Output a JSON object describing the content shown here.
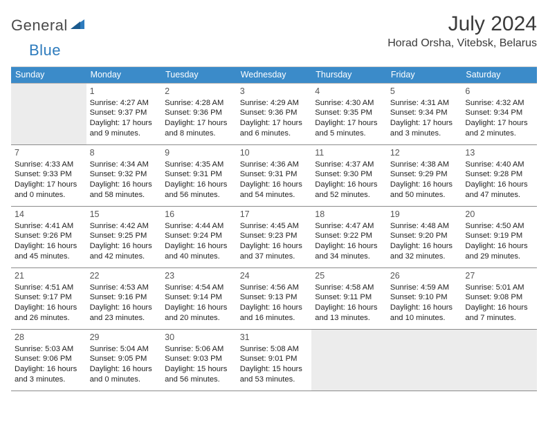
{
  "brand": {
    "general": "General",
    "blue": "Blue"
  },
  "title": {
    "month": "July 2024",
    "location": "Horad Orsha, Vitebsk, Belarus"
  },
  "colors": {
    "header_bg": "#3b8bc9",
    "header_text": "#ffffff",
    "border": "#8a8a8a",
    "empty_bg": "#ececec",
    "text": "#222222",
    "brand_gray": "#4a4a4a",
    "brand_blue": "#2d7bbd"
  },
  "typography": {
    "title_fontsize": 30,
    "location_fontsize": 16,
    "dayhead_fontsize": 12.5,
    "daynum_fontsize": 12.5,
    "cell_fontsize": 11.2
  },
  "dayheads": [
    "Sunday",
    "Monday",
    "Tuesday",
    "Wednesday",
    "Thursday",
    "Friday",
    "Saturday"
  ],
  "days": [
    {
      "n": "",
      "sr": "",
      "ss": "",
      "dl1": "",
      "dl2": ""
    },
    {
      "n": "1",
      "sr": "Sunrise: 4:27 AM",
      "ss": "Sunset: 9:37 PM",
      "dl1": "Daylight: 17 hours",
      "dl2": "and 9 minutes."
    },
    {
      "n": "2",
      "sr": "Sunrise: 4:28 AM",
      "ss": "Sunset: 9:36 PM",
      "dl1": "Daylight: 17 hours",
      "dl2": "and 8 minutes."
    },
    {
      "n": "3",
      "sr": "Sunrise: 4:29 AM",
      "ss": "Sunset: 9:36 PM",
      "dl1": "Daylight: 17 hours",
      "dl2": "and 6 minutes."
    },
    {
      "n": "4",
      "sr": "Sunrise: 4:30 AM",
      "ss": "Sunset: 9:35 PM",
      "dl1": "Daylight: 17 hours",
      "dl2": "and 5 minutes."
    },
    {
      "n": "5",
      "sr": "Sunrise: 4:31 AM",
      "ss": "Sunset: 9:34 PM",
      "dl1": "Daylight: 17 hours",
      "dl2": "and 3 minutes."
    },
    {
      "n": "6",
      "sr": "Sunrise: 4:32 AM",
      "ss": "Sunset: 9:34 PM",
      "dl1": "Daylight: 17 hours",
      "dl2": "and 2 minutes."
    },
    {
      "n": "7",
      "sr": "Sunrise: 4:33 AM",
      "ss": "Sunset: 9:33 PM",
      "dl1": "Daylight: 17 hours",
      "dl2": "and 0 minutes."
    },
    {
      "n": "8",
      "sr": "Sunrise: 4:34 AM",
      "ss": "Sunset: 9:32 PM",
      "dl1": "Daylight: 16 hours",
      "dl2": "and 58 minutes."
    },
    {
      "n": "9",
      "sr": "Sunrise: 4:35 AM",
      "ss": "Sunset: 9:31 PM",
      "dl1": "Daylight: 16 hours",
      "dl2": "and 56 minutes."
    },
    {
      "n": "10",
      "sr": "Sunrise: 4:36 AM",
      "ss": "Sunset: 9:31 PM",
      "dl1": "Daylight: 16 hours",
      "dl2": "and 54 minutes."
    },
    {
      "n": "11",
      "sr": "Sunrise: 4:37 AM",
      "ss": "Sunset: 9:30 PM",
      "dl1": "Daylight: 16 hours",
      "dl2": "and 52 minutes."
    },
    {
      "n": "12",
      "sr": "Sunrise: 4:38 AM",
      "ss": "Sunset: 9:29 PM",
      "dl1": "Daylight: 16 hours",
      "dl2": "and 50 minutes."
    },
    {
      "n": "13",
      "sr": "Sunrise: 4:40 AM",
      "ss": "Sunset: 9:28 PM",
      "dl1": "Daylight: 16 hours",
      "dl2": "and 47 minutes."
    },
    {
      "n": "14",
      "sr": "Sunrise: 4:41 AM",
      "ss": "Sunset: 9:26 PM",
      "dl1": "Daylight: 16 hours",
      "dl2": "and 45 minutes."
    },
    {
      "n": "15",
      "sr": "Sunrise: 4:42 AM",
      "ss": "Sunset: 9:25 PM",
      "dl1": "Daylight: 16 hours",
      "dl2": "and 42 minutes."
    },
    {
      "n": "16",
      "sr": "Sunrise: 4:44 AM",
      "ss": "Sunset: 9:24 PM",
      "dl1": "Daylight: 16 hours",
      "dl2": "and 40 minutes."
    },
    {
      "n": "17",
      "sr": "Sunrise: 4:45 AM",
      "ss": "Sunset: 9:23 PM",
      "dl1": "Daylight: 16 hours",
      "dl2": "and 37 minutes."
    },
    {
      "n": "18",
      "sr": "Sunrise: 4:47 AM",
      "ss": "Sunset: 9:22 PM",
      "dl1": "Daylight: 16 hours",
      "dl2": "and 34 minutes."
    },
    {
      "n": "19",
      "sr": "Sunrise: 4:48 AM",
      "ss": "Sunset: 9:20 PM",
      "dl1": "Daylight: 16 hours",
      "dl2": "and 32 minutes."
    },
    {
      "n": "20",
      "sr": "Sunrise: 4:50 AM",
      "ss": "Sunset: 9:19 PM",
      "dl1": "Daylight: 16 hours",
      "dl2": "and 29 minutes."
    },
    {
      "n": "21",
      "sr": "Sunrise: 4:51 AM",
      "ss": "Sunset: 9:17 PM",
      "dl1": "Daylight: 16 hours",
      "dl2": "and 26 minutes."
    },
    {
      "n": "22",
      "sr": "Sunrise: 4:53 AM",
      "ss": "Sunset: 9:16 PM",
      "dl1": "Daylight: 16 hours",
      "dl2": "and 23 minutes."
    },
    {
      "n": "23",
      "sr": "Sunrise: 4:54 AM",
      "ss": "Sunset: 9:14 PM",
      "dl1": "Daylight: 16 hours",
      "dl2": "and 20 minutes."
    },
    {
      "n": "24",
      "sr": "Sunrise: 4:56 AM",
      "ss": "Sunset: 9:13 PM",
      "dl1": "Daylight: 16 hours",
      "dl2": "and 16 minutes."
    },
    {
      "n": "25",
      "sr": "Sunrise: 4:58 AM",
      "ss": "Sunset: 9:11 PM",
      "dl1": "Daylight: 16 hours",
      "dl2": "and 13 minutes."
    },
    {
      "n": "26",
      "sr": "Sunrise: 4:59 AM",
      "ss": "Sunset: 9:10 PM",
      "dl1": "Daylight: 16 hours",
      "dl2": "and 10 minutes."
    },
    {
      "n": "27",
      "sr": "Sunrise: 5:01 AM",
      "ss": "Sunset: 9:08 PM",
      "dl1": "Daylight: 16 hours",
      "dl2": "and 7 minutes."
    },
    {
      "n": "28",
      "sr": "Sunrise: 5:03 AM",
      "ss": "Sunset: 9:06 PM",
      "dl1": "Daylight: 16 hours",
      "dl2": "and 3 minutes."
    },
    {
      "n": "29",
      "sr": "Sunrise: 5:04 AM",
      "ss": "Sunset: 9:05 PM",
      "dl1": "Daylight: 16 hours",
      "dl2": "and 0 minutes."
    },
    {
      "n": "30",
      "sr": "Sunrise: 5:06 AM",
      "ss": "Sunset: 9:03 PM",
      "dl1": "Daylight: 15 hours",
      "dl2": "and 56 minutes."
    },
    {
      "n": "31",
      "sr": "Sunrise: 5:08 AM",
      "ss": "Sunset: 9:01 PM",
      "dl1": "Daylight: 15 hours",
      "dl2": "and 53 minutes."
    },
    {
      "n": "",
      "sr": "",
      "ss": "",
      "dl1": "",
      "dl2": ""
    },
    {
      "n": "",
      "sr": "",
      "ss": "",
      "dl1": "",
      "dl2": ""
    },
    {
      "n": "",
      "sr": "",
      "ss": "",
      "dl1": "",
      "dl2": ""
    }
  ]
}
